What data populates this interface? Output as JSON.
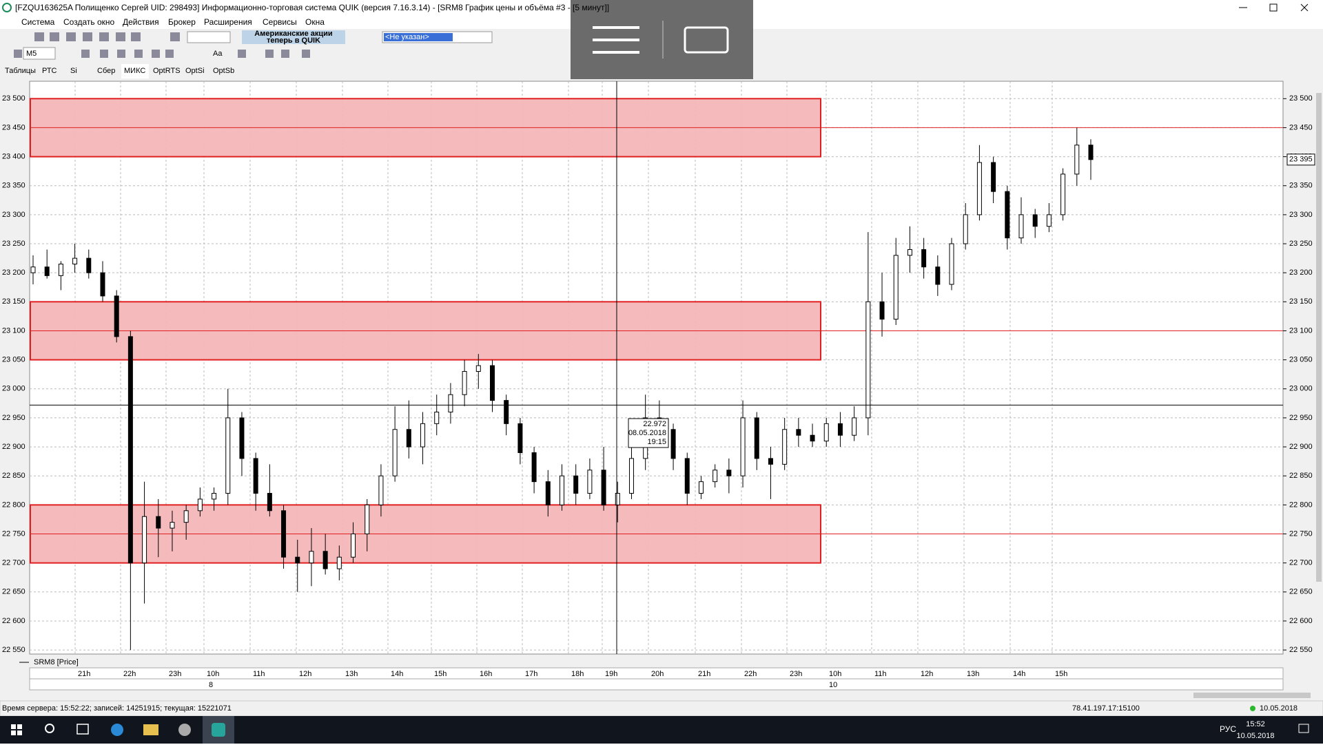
{
  "window": {
    "title": "[FZQU163625A Полищенко Сергей UID: 298493] Информационно-торговая система QUIK (версия 7.16.3.14) - [SRM8 График цены и объёма #3 - [5 минут]]"
  },
  "menu": [
    "Система",
    "Создать окно",
    "Действия",
    "Брокер",
    "Расширения",
    "Сервисы",
    "Окна"
  ],
  "toolbar": {
    "banner": [
      "Американские акции",
      "теперь в QUIK"
    ],
    "account": "<Не указан>",
    "interval": "M5",
    "font": "Aa"
  },
  "tabs": [
    "Таблицы",
    "РТС",
    "Si",
    "Сбер",
    "МИКС",
    "OptRTS",
    "OptSi",
    "OptSb"
  ],
  "chart_data": {
    "type": "candlestick",
    "legend": "SRM8 [Price]",
    "ylim": [
      22543,
      23530
    ],
    "yticks": [
      {
        "value": 22550,
        "label": "22 550"
      },
      {
        "value": 22600,
        "label": "22 600"
      },
      {
        "value": 22650,
        "label": "22 650"
      },
      {
        "value": 22700,
        "label": "22 700"
      },
      {
        "value": 22750,
        "label": "22 750"
      },
      {
        "value": 22800,
        "label": "22 800"
      },
      {
        "value": 22850,
        "label": "22 850"
      },
      {
        "value": 22900,
        "label": "22 900"
      },
      {
        "value": 22950,
        "label": "22 950"
      },
      {
        "value": 23000,
        "label": "23 000"
      },
      {
        "value": 23050,
        "label": "23 050"
      },
      {
        "value": 23100,
        "label": "23 100"
      },
      {
        "value": 23150,
        "label": "23 150"
      },
      {
        "value": 23200,
        "label": "23 200"
      },
      {
        "value": 23250,
        "label": "23 250"
      },
      {
        "value": 23300,
        "label": "23 300"
      },
      {
        "value": 23350,
        "label": "23 350"
      },
      {
        "value": 23400,
        "label": "23 400"
      },
      {
        "value": 23450,
        "label": "23 450"
      },
      {
        "value": 23500,
        "label": "23 500"
      }
    ],
    "time_labels": [
      "21h",
      "22h",
      "23h",
      "10h",
      "11h",
      "12h",
      "13h",
      "14h",
      "15h",
      "16h",
      "17h",
      "18h",
      "19h",
      "20h",
      "21h",
      "22h",
      "23h",
      "10h",
      "11h",
      "12h",
      "13h",
      "14h",
      "15h"
    ],
    "day_labels": [
      "8",
      "10"
    ],
    "zone_color": "#f4b6b8",
    "line_color": "#e02020",
    "zones": [
      {
        "from": 23400,
        "to": 23500
      },
      {
        "from": 23050,
        "to": 23150
      },
      {
        "from": 22700,
        "to": 22800
      }
    ],
    "levels": [
      23450,
      23100,
      22750
    ],
    "last_price": {
      "value": 23395,
      "label": "23 395"
    },
    "crosshair": {
      "price": 22972,
      "label": "22.972",
      "date": "08.05.2018",
      "time": "19:15"
    },
    "candles": [
      [
        23200,
        23230,
        23180,
        23210
      ],
      [
        23210,
        23240,
        23190,
        23195
      ],
      [
        23195,
        23220,
        23170,
        23215
      ],
      [
        23215,
        23250,
        23200,
        23225
      ],
      [
        23225,
        23240,
        23190,
        23200
      ],
      [
        23200,
        23220,
        23150,
        23160
      ],
      [
        23160,
        23170,
        23080,
        23090
      ],
      [
        23090,
        23100,
        22550,
        22700
      ],
      [
        22700,
        22840,
        22630,
        22780
      ],
      [
        22780,
        22810,
        22710,
        22760
      ],
      [
        22760,
        22790,
        22720,
        22770
      ],
      [
        22770,
        22800,
        22740,
        22790
      ],
      [
        22790,
        22830,
        22780,
        22810
      ],
      [
        22810,
        22830,
        22790,
        22820
      ],
      [
        22820,
        23000,
        22800,
        22950
      ],
      [
        22950,
        22960,
        22850,
        22880
      ],
      [
        22880,
        22890,
        22790,
        22820
      ],
      [
        22820,
        22870,
        22780,
        22790
      ],
      [
        22790,
        22800,
        22690,
        22710
      ],
      [
        22710,
        22740,
        22650,
        22700
      ],
      [
        22700,
        22760,
        22660,
        22720
      ],
      [
        22720,
        22750,
        22680,
        22690
      ],
      [
        22690,
        22730,
        22670,
        22710
      ],
      [
        22710,
        22770,
        22700,
        22750
      ],
      [
        22750,
        22810,
        22720,
        22800
      ],
      [
        22800,
        22870,
        22780,
        22850
      ],
      [
        22850,
        22970,
        22840,
        22930
      ],
      [
        22930,
        22980,
        22880,
        22900
      ],
      [
        22900,
        22960,
        22870,
        22940
      ],
      [
        22940,
        22990,
        22920,
        22960
      ],
      [
        22960,
        23010,
        22940,
        22990
      ],
      [
        22990,
        23050,
        22970,
        23030
      ],
      [
        23030,
        23060,
        23000,
        23040
      ],
      [
        23040,
        23050,
        22960,
        22980
      ],
      [
        22980,
        22990,
        22920,
        22940
      ],
      [
        22940,
        22950,
        22870,
        22890
      ],
      [
        22890,
        22900,
        22820,
        22840
      ],
      [
        22840,
        22860,
        22780,
        22800
      ],
      [
        22800,
        22870,
        22790,
        22850
      ],
      [
        22850,
        22870,
        22800,
        22820
      ],
      [
        22820,
        22880,
        22810,
        22860
      ],
      [
        22860,
        22900,
        22790,
        22800
      ],
      [
        22800,
        22840,
        22770,
        22820
      ],
      [
        22820,
        22900,
        22810,
        22880
      ],
      [
        22880,
        22990,
        22860,
        22950
      ],
      [
        22950,
        22980,
        22910,
        22930
      ],
      [
        22930,
        22940,
        22860,
        22880
      ],
      [
        22880,
        22890,
        22800,
        22820
      ],
      [
        22820,
        22850,
        22810,
        22840
      ],
      [
        22840,
        22870,
        22830,
        22860
      ],
      [
        22860,
        22880,
        22820,
        22850
      ],
      [
        22850,
        22980,
        22830,
        22950
      ],
      [
        22950,
        22960,
        22860,
        22880
      ],
      [
        22880,
        22900,
        22810,
        22870
      ],
      [
        22870,
        22950,
        22860,
        22930
      ],
      [
        22930,
        22950,
        22900,
        22920
      ],
      [
        22920,
        22940,
        22900,
        22910
      ],
      [
        22910,
        22950,
        22900,
        22940
      ],
      [
        22940,
        22960,
        22900,
        22920
      ],
      [
        22920,
        22970,
        22910,
        22950
      ],
      [
        22950,
        23270,
        22920,
        23150
      ],
      [
        23150,
        23200,
        23090,
        23120
      ],
      [
        23120,
        23260,
        23110,
        23230
      ],
      [
        23230,
        23280,
        23200,
        23240
      ],
      [
        23240,
        23260,
        23190,
        23210
      ],
      [
        23210,
        23230,
        23160,
        23180
      ],
      [
        23180,
        23260,
        23170,
        23250
      ],
      [
        23250,
        23320,
        23240,
        23300
      ],
      [
        23300,
        23420,
        23290,
        23390
      ],
      [
        23390,
        23400,
        23320,
        23340
      ],
      [
        23340,
        23350,
        23240,
        23260
      ],
      [
        23260,
        23330,
        23250,
        23300
      ],
      [
        23300,
        23310,
        23260,
        23280
      ],
      [
        23280,
        23320,
        23270,
        23300
      ],
      [
        23300,
        23380,
        23290,
        23370
      ],
      [
        23370,
        23450,
        23350,
        23420
      ],
      [
        23420,
        23430,
        23360,
        23395
      ]
    ]
  },
  "status": {
    "server": "Время сервера: 15:52:22; записей: 14251915; текущая: 15221071",
    "connection": "78.41.197.17:15100",
    "date": "10.05.2018"
  },
  "taskbar": {
    "lang": "РУС",
    "time": "15:52",
    "date": "10.05.2018"
  }
}
